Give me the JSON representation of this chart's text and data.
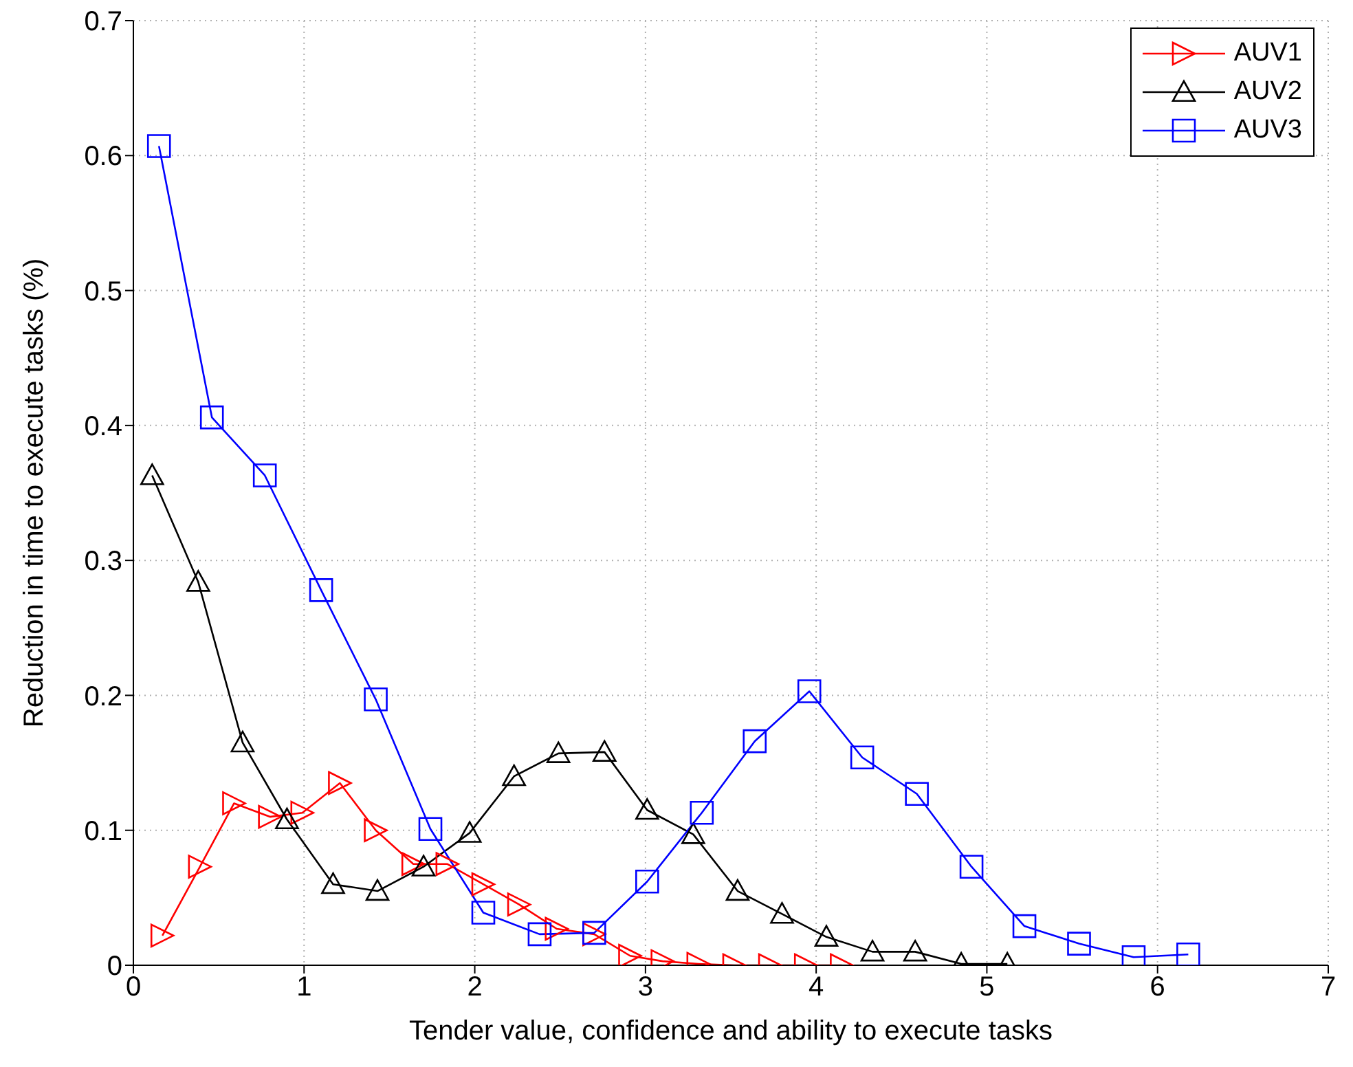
{
  "chart_data": {
    "type": "line",
    "xlabel": "Tender value, confidence and ability to execute tasks",
    "ylabel": "Reduction in time to execute tasks (%)",
    "xlim": [
      0,
      7
    ],
    "xticks": [
      0,
      1,
      2,
      3,
      4,
      5,
      6,
      7
    ],
    "ylim": [
      0,
      0.7
    ],
    "yticks": [
      0,
      0.1,
      0.2,
      0.3,
      0.4,
      0.5,
      0.6,
      0.7
    ],
    "grid": true,
    "legend": "top right",
    "series": [
      {
        "name": "AUV1",
        "color": "#ff0000",
        "marker": "triangle-right",
        "x": [
          0.17,
          0.39,
          0.59,
          0.8,
          0.99,
          1.21,
          1.42,
          1.64,
          1.84,
          2.05,
          2.26,
          2.48,
          2.7,
          2.91,
          3.1,
          3.31,
          3.52,
          3.73,
          3.94,
          4.15
        ],
        "values": [
          0.022,
          0.073,
          0.12,
          0.11,
          0.113,
          0.135,
          0.1,
          0.075,
          0.075,
          0.06,
          0.045,
          0.027,
          0.023,
          0.007,
          0.003,
          0.001,
          0,
          0,
          0,
          0
        ]
      },
      {
        "name": "AUV2",
        "color": "#000000",
        "marker": "triangle",
        "x": [
          0.11,
          0.38,
          0.64,
          0.9,
          1.17,
          1.43,
          1.7,
          1.97,
          2.23,
          2.49,
          2.76,
          3.01,
          3.28,
          3.54,
          3.8,
          4.06,
          4.33,
          4.58,
          4.85,
          5.12
        ],
        "values": [
          0.363,
          0.284,
          0.165,
          0.108,
          0.06,
          0.055,
          0.073,
          0.098,
          0.14,
          0.157,
          0.158,
          0.115,
          0.097,
          0.055,
          0.038,
          0.021,
          0.01,
          0.01,
          0.001,
          0.001
        ]
      },
      {
        "name": "AUV3",
        "color": "#0000ff",
        "marker": "square",
        "x": [
          0.15,
          0.46,
          0.77,
          1.1,
          1.42,
          1.74,
          2.05,
          2.38,
          2.7,
          3.01,
          3.33,
          3.64,
          3.96,
          4.27,
          4.59,
          4.91,
          5.22,
          5.54,
          5.86,
          6.18
        ],
        "values": [
          0.607,
          0.406,
          0.363,
          0.278,
          0.197,
          0.101,
          0.039,
          0.023,
          0.024,
          0.062,
          0.113,
          0.166,
          0.203,
          0.154,
          0.127,
          0.073,
          0.029,
          0.016,
          0.006,
          0.008
        ]
      }
    ]
  }
}
